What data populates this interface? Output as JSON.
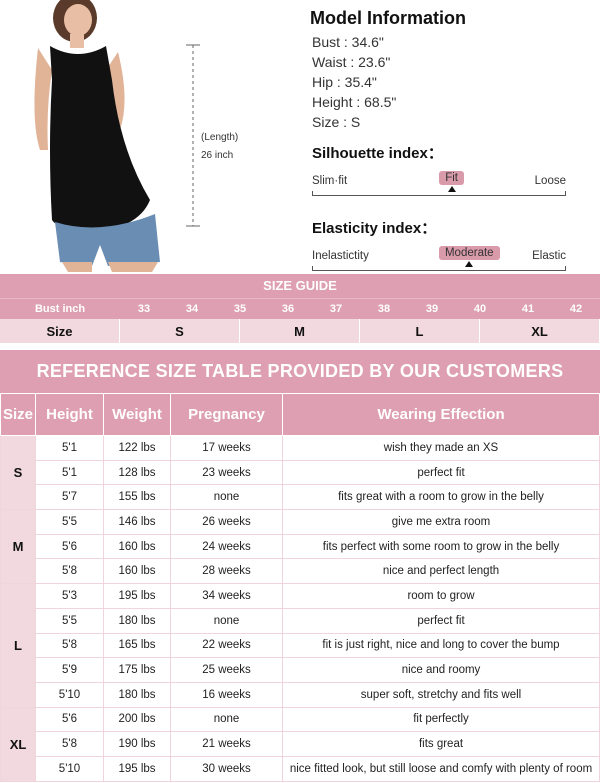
{
  "photo": {
    "length_label": "(Length)",
    "length_value": "26 inch"
  },
  "model": {
    "title": "Model Information",
    "lines": [
      "Bust : 34.6\"",
      "Waist : 23.6\"",
      "Hip : 35.4\"",
      "Height : 68.5\"",
      "Size : S"
    ]
  },
  "silhouette": {
    "title": "Silhouette index：",
    "left": "Slim·fit",
    "right": "Loose",
    "value": "Fit",
    "position_percent": 55
  },
  "elasticity": {
    "title": "Elasticity index：",
    "left": "Inelastictity",
    "right": "Elastic",
    "value": "Moderate",
    "position_percent": 62
  },
  "size_guide": {
    "title": "SIZE GUIDE",
    "bust_label": "Bust inch",
    "bust": [
      "33",
      "34",
      "35",
      "36",
      "37",
      "38",
      "39",
      "40",
      "41",
      "42"
    ],
    "size_label": "Size",
    "sizes": [
      "S",
      "M",
      "L",
      "XL"
    ]
  },
  "reference": {
    "title": "REFERENCE SIZE TABLE PROVIDED BY OUR CUSTOMERS",
    "headers": [
      "Size",
      "Height",
      "Weight",
      "Pregnancy",
      "Wearing Effection"
    ],
    "groups": [
      {
        "size": "S",
        "rows": [
          [
            "5'1",
            "122 lbs",
            "17 weeks",
            "wish they made an XS"
          ],
          [
            "5'1",
            "128  lbs",
            "23 weeks",
            "perfect fit"
          ],
          [
            "5'7",
            "155  lbs",
            "none",
            "fits great with a room to grow in the belly"
          ]
        ]
      },
      {
        "size": "M",
        "rows": [
          [
            "5'5",
            "146  lbs",
            "26 weeks",
            "give me extra room"
          ],
          [
            "5'6",
            "160  lbs",
            "24 weeks",
            "fits perfect with some room to grow in the belly"
          ],
          [
            "5'8",
            "160  lbs",
            "28 weeks",
            "nice and perfect length"
          ]
        ]
      },
      {
        "size": "L",
        "rows": [
          [
            "5'3",
            "195  lbs",
            "34 weeks",
            "room to grow"
          ],
          [
            "5'5",
            "180  lbs",
            "none",
            "perfect fit"
          ],
          [
            "5'8",
            "165  lbs",
            "22 weeks",
            "fit is just right, nice and long to cover the bump"
          ],
          [
            "5'9",
            "175  lbs",
            "25 weeks",
            "nice and roomy"
          ],
          [
            "5'10",
            "180  lbs",
            "16 weeks",
            "super soft, stretchy and fits well"
          ]
        ]
      },
      {
        "size": "XL",
        "rows": [
          [
            "5'6",
            "200 lbs",
            "none",
            "fit perfectly"
          ],
          [
            "5'8",
            "190 lbs",
            "21 weeks",
            "fits great"
          ],
          [
            "5'10",
            "195  lbs",
            "30 weeks",
            "nice fitted look, but still loose and comfy with plenty of room"
          ]
        ]
      }
    ]
  },
  "colors": {
    "pink": "#dd9fb1",
    "light_pink": "#f2d9e0"
  }
}
